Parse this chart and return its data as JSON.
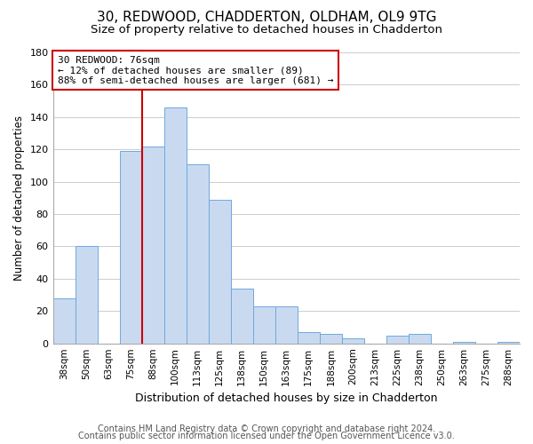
{
  "title": "30, REDWOOD, CHADDERTON, OLDHAM, OL9 9TG",
  "subtitle": "Size of property relative to detached houses in Chadderton",
  "xlabel": "Distribution of detached houses by size in Chadderton",
  "ylabel": "Number of detached properties",
  "footnote1": "Contains HM Land Registry data © Crown copyright and database right 2024.",
  "footnote2": "Contains public sector information licensed under the Open Government Licence v3.0.",
  "bin_labels": [
    "38sqm",
    "50sqm",
    "63sqm",
    "75sqm",
    "88sqm",
    "100sqm",
    "113sqm",
    "125sqm",
    "138sqm",
    "150sqm",
    "163sqm",
    "175sqm",
    "188sqm",
    "200sqm",
    "213sqm",
    "225sqm",
    "238sqm",
    "250sqm",
    "263sqm",
    "275sqm",
    "288sqm"
  ],
  "bar_heights": [
    28,
    60,
    0,
    119,
    122,
    146,
    111,
    89,
    34,
    23,
    23,
    7,
    6,
    3,
    0,
    5,
    6,
    0,
    1,
    0,
    1
  ],
  "bar_color": "#c9daf0",
  "bar_edge_color": "#6fa8dc",
  "vline_x_index": 3.5,
  "annotation_box_text_line1": "30 REDWOOD: 76sqm",
  "annotation_box_text_line2": "← 12% of detached houses are smaller (89)",
  "annotation_box_text_line3": "88% of semi-detached houses are larger (681) →",
  "annotation_box_edge_color": "#cc0000",
  "vline_color": "#cc0000",
  "ylim": [
    0,
    180
  ],
  "yticks": [
    0,
    20,
    40,
    60,
    80,
    100,
    120,
    140,
    160,
    180
  ],
  "bg_color": "#ffffff",
  "grid_color": "#cccccc",
  "title_fontsize": 11,
  "subtitle_fontsize": 9.5,
  "xlabel_fontsize": 9,
  "ylabel_fontsize": 8.5,
  "footnote_fontsize": 7
}
